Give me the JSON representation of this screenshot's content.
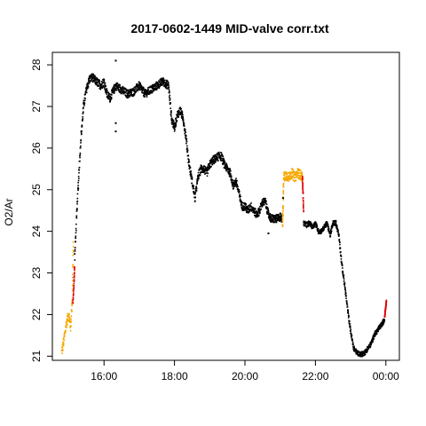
{
  "chart_data": {
    "type": "scatter",
    "title": "2017-0602-1449 MID-valve corr.txt",
    "xlabel": "",
    "ylabel": "O2/Ar",
    "xlim": [
      "14:32",
      "00:23"
    ],
    "ylim": [
      20.9,
      28.3
    ],
    "x_ticks": [
      "16:00",
      "18:00",
      "20:00",
      "22:00",
      "00:00"
    ],
    "y_ticks": [
      21,
      22,
      23,
      24,
      25,
      26,
      27,
      28
    ],
    "grid": false,
    "legend": "none",
    "colors": {
      "main": "#000000",
      "flagged": "#f5a800",
      "transition": "#e00000"
    },
    "series": [
      {
        "color_key": "flagged",
        "x": [
          "14:48",
          "14:52",
          "14:56",
          "15:00",
          "15:03",
          "15:06",
          "15:08"
        ],
        "y": [
          21.1,
          21.4,
          21.8,
          22.0,
          21.7,
          22.4,
          23.9
        ],
        "band": 0.12
      },
      {
        "color_key": "transition",
        "x": [
          "15:07",
          "15:09",
          "15:10"
        ],
        "y": [
          22.3,
          22.8,
          23.2
        ],
        "band": 0.04
      },
      {
        "color_key": "main",
        "x": [
          "15:10",
          "15:15",
          "15:20",
          "15:25",
          "15:30",
          "15:35",
          "15:40",
          "15:47",
          "15:55",
          "16:00",
          "16:05",
          "16:10",
          "16:20",
          "16:30",
          "16:40",
          "16:50",
          "17:00",
          "17:10",
          "17:20",
          "17:30",
          "17:40",
          "17:50",
          "17:55",
          "18:00",
          "18:05",
          "18:10",
          "18:15",
          "18:20",
          "18:25",
          "18:30",
          "18:35",
          "18:40",
          "18:45",
          "18:50",
          "18:55",
          "19:00",
          "19:05",
          "19:15",
          "19:20",
          "19:25",
          "19:30",
          "19:35",
          "19:40",
          "19:45",
          "19:50",
          "19:55",
          "20:00",
          "20:05",
          "20:10",
          "20:20",
          "20:25",
          "20:30",
          "20:35",
          "20:40",
          "20:45",
          "20:50",
          "20:55",
          "21:00",
          "21:03"
        ],
        "y": [
          23.4,
          24.8,
          26.1,
          27.0,
          27.4,
          27.65,
          27.7,
          27.6,
          27.5,
          27.6,
          27.3,
          27.2,
          27.5,
          27.4,
          27.3,
          27.35,
          27.5,
          27.3,
          27.4,
          27.5,
          27.6,
          27.5,
          26.7,
          26.5,
          26.8,
          26.9,
          26.7,
          26.2,
          25.6,
          25.2,
          24.8,
          25.3,
          25.5,
          25.5,
          25.4,
          25.6,
          25.7,
          25.8,
          25.8,
          25.6,
          25.5,
          25.4,
          25.1,
          25.2,
          24.9,
          24.6,
          24.6,
          24.5,
          24.6,
          24.4,
          24.5,
          24.7,
          24.7,
          24.4,
          24.3,
          24.3,
          24.3,
          24.35,
          24.3
        ],
        "band": 0.1
      },
      {
        "color_key": "flagged",
        "x": [
          "21:04",
          "21:05",
          "21:06",
          "21:10",
          "21:15",
          "21:20",
          "21:25",
          "21:30",
          "21:35",
          "21:38"
        ],
        "y": [
          24.2,
          24.6,
          25.3,
          25.35,
          25.3,
          25.4,
          25.3,
          25.4,
          25.35,
          25.3
        ],
        "band": 0.12
      },
      {
        "color_key": "transition",
        "x": [
          "21:38",
          "21:39",
          "21:40"
        ],
        "y": [
          25.3,
          24.9,
          24.4
        ],
        "band": 0.03
      },
      {
        "color_key": "main",
        "x": [
          "21:40",
          "21:45",
          "21:50",
          "21:55",
          "22:00",
          "22:05",
          "22:10",
          "22:15",
          "22:20",
          "22:25",
          "22:30",
          "22:35",
          "22:40",
          "22:45",
          "22:50",
          "22:55",
          "23:00",
          "23:05",
          "23:10",
          "23:15",
          "23:20",
          "23:25",
          "23:30",
          "23:35",
          "23:40",
          "23:45",
          "23:50",
          "23:55",
          "23:58"
        ],
        "y": [
          24.2,
          24.15,
          24.2,
          24.1,
          24.2,
          24.0,
          24.0,
          24.1,
          24.2,
          23.9,
          24.2,
          24.2,
          23.9,
          23.2,
          22.7,
          22.1,
          21.6,
          21.2,
          21.1,
          21.05,
          21.05,
          21.1,
          21.2,
          21.3,
          21.5,
          21.6,
          21.7,
          21.8,
          21.9
        ],
        "band": 0.06
      },
      {
        "color_key": "transition",
        "x": [
          "23:58",
          "23:59",
          "00:00",
          "00:01"
        ],
        "y": [
          21.95,
          22.1,
          22.2,
          22.35
        ],
        "band": 0.03
      }
    ],
    "outliers": [
      {
        "x": "16:20",
        "y": 28.1
      },
      {
        "x": "16:20",
        "y": 26.4
      },
      {
        "x": "16:20",
        "y": 26.6
      },
      {
        "x": "20:40",
        "y": 23.95
      },
      {
        "x": "21:05",
        "y": 24.8
      }
    ]
  }
}
